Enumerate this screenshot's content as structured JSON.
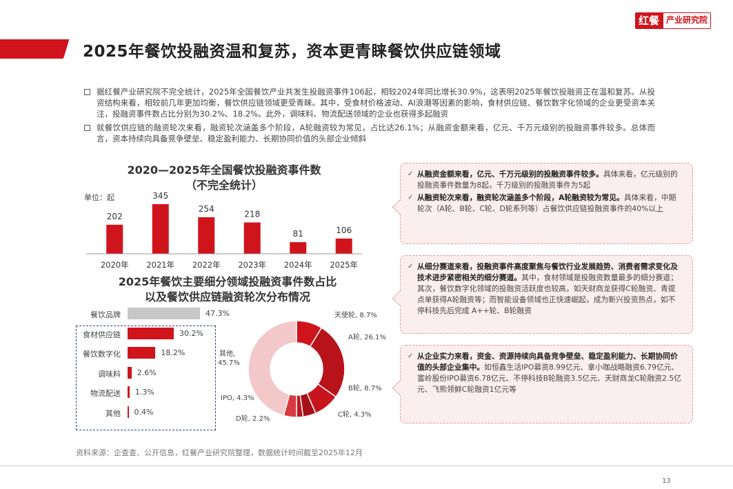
{
  "logo": {
    "main": "红餐",
    "sub": "产业研究院"
  },
  "page_title": "2025年餐饮投融资温和复苏，资本更青睐餐饮供应链领域",
  "bullets": [
    "据红餐产业研究院不完全统计，2025年全国餐饮产业共发生投融资事件106起，相较2024年同比增长30.9%，这表明2025年餐饮投融资正在温和复苏。从投资结构来看，相较前几年更加均衡，餐饮供应链领域更受青睐。其中，受食材价格波动、AI浪潮等因素的影响，食材供应链、餐饮数字化领域的企业更受资本关注，投融资事件数占比分别为30.2%、18.2%。此外，调味料、物流配送领域的企业也获得多起融资",
    "就餐饮供应链的融资轮次来看，融资轮次涵盖多个阶段，A轮融资较为常见，占比达26.1%；从融资金额来看，亿元、千万元级别的投融资事件较多。总体而言，资本持续向具备竞争壁垒、稳定盈利能力、长期协同价值的头部企业倾斜"
  ],
  "bar_chart_title_line1": "2020—2025年全国餐饮投融资事件数",
  "bar_chart_title_line2": "（不完全统计）",
  "unit_label": "单位：起",
  "hbar_title_line1": "2025年餐饮主要细分领域投融资事件数占比",
  "hbar_title_line2": "以及餐饮供应链融资轮次分布情况",
  "chart_data": [
    {
      "type": "bar",
      "title": "2020—2025年全国餐饮投融资事件数（不完全统计）",
      "ylabel": "单位：起",
      "categories": [
        "2020年",
        "2021年",
        "2022年",
        "2023年",
        "2024年",
        "2025年"
      ],
      "values": [
        202,
        345,
        254,
        218,
        81,
        106
      ],
      "ylim": [
        0,
        345
      ]
    },
    {
      "type": "bar",
      "orientation": "horizontal",
      "title": "2025年餐饮主要细分领域投融资事件数占比",
      "categories": [
        "餐饮品牌",
        "食材供应链",
        "餐饮数字化",
        "调味料",
        "物流配送",
        "其他"
      ],
      "values": [
        47.3,
        30.2,
        18.2,
        2.6,
        1.3,
        0.4
      ],
      "labels": [
        "47.3%",
        "30.2%",
        "18.2%",
        "2.6%",
        "1.3%",
        "0.4%"
      ],
      "colors": [
        "#c7c7c7",
        "#d0141c",
        "#d0141c",
        "#d0141c",
        "#d0141c",
        "#d0141c"
      ]
    },
    {
      "type": "pie",
      "donut": true,
      "title": "餐饮供应链融资轮次分布情况",
      "labels": [
        "天使轮, 8.7%",
        "A轮, 26.1%",
        "B轮, 8.7%",
        "C轮, 4.3%",
        "D轮, 2.2%",
        "IPO, 4.3%",
        "其他, 45.7%"
      ],
      "values": [
        8.7,
        26.1,
        8.7,
        4.3,
        2.2,
        4.3,
        45.7
      ],
      "colors": [
        "#d0141c",
        "#b8121a",
        "#c8141c",
        "#a51018",
        "#bf1820",
        "#d83a3f",
        "#f2c8c8"
      ]
    }
  ],
  "boxes": [
    [
      {
        "bold": "从融资金额来看，亿元、千万元级别的投融资事件较多。",
        "text": "具体来看，亿元级别的投融资事件数量为8起，千万级别的投融资事件为5起"
      },
      {
        "bold": "从融资轮次来看，融资轮次涵盖多个阶段，A轮融资较为常见。",
        "text": "具体来看，中期轮次（A轮、B轮、C轮、D轮系列等）占餐饮供应链投融资事件的40%以上"
      }
    ],
    [
      {
        "bold": "从细分赛道来看，投融资事件高度聚焦与餐饮行业发展趋势、消费者需求变化及技术进步紧密相关的细分赛道。",
        "text": "其中，食材领域是投融资数量最多的细分赛道；其次，餐饮数字化领域的投融资活跃度也较高，如天财商龙获得C轮融资、青提点单获得A轮融资等；而智能设备领域也正快速崛起，成为新兴投资热点，如不停科技先后完成 A++轮、B轮融资"
      }
    ],
    [
      {
        "bold": "从企业实力来看，资金、资源持续向具备竞争壁垒、稳定盈利能力、长期协同价值的头部企业集中。",
        "text": "如恒鑫生活IPO募资8.99亿元、拿小咖战略融资6.79亿元、富岭股份IPO募资6.78亿元、不停科技B轮融资3.5亿元、天财商龙C轮融资2.5亿元、飞熊领鲜C轮融资1亿元等"
      }
    ]
  ],
  "source": "资料来源：企查查、公开信息，红餐产业研究院整理，数据统计时间截至2025年12月",
  "page_number": "13"
}
